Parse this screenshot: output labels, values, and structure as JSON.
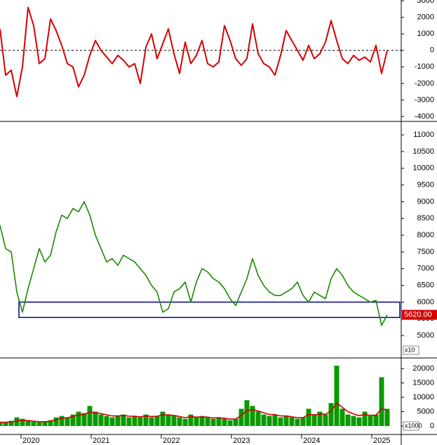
{
  "chart_data": [
    {
      "type": "line",
      "x": [
        2019.7,
        2019.78,
        2019.86,
        2019.94,
        2020.02,
        2020.1,
        2020.18,
        2020.26,
        2020.34,
        2020.42,
        2020.5,
        2020.58,
        2020.66,
        2020.74,
        2020.82,
        2020.9,
        2020.98,
        2021.06,
        2021.14,
        2021.22,
        2021.3,
        2021.38,
        2021.46,
        2021.54,
        2021.62,
        2021.7,
        2021.78,
        2021.86,
        2021.94,
        2022.02,
        2022.1,
        2022.18,
        2022.26,
        2022.34,
        2022.42,
        2022.5,
        2022.58,
        2022.66,
        2022.74,
        2022.82,
        2022.9,
        2022.98,
        2023.06,
        2023.14,
        2023.22,
        2023.3,
        2023.38,
        2023.46,
        2023.54,
        2023.62,
        2023.7,
        2023.78,
        2023.86,
        2023.94,
        2024.02,
        2024.1,
        2024.18,
        2024.26,
        2024.34,
        2024.42,
        2024.5,
        2024.58,
        2024.66,
        2024.74,
        2024.82,
        2024.9,
        2024.98,
        2025.06,
        2025.14,
        2025.22
      ],
      "series": [
        {
          "color": "#d40000",
          "values": [
            1300,
            -1500,
            -1200,
            -2800,
            -1000,
            2600,
            1500,
            -800,
            -500,
            1900,
            1200,
            300,
            -800,
            -1000,
            -2200,
            -1500,
            -300,
            600,
            0,
            -400,
            -800,
            -300,
            -600,
            -1000,
            -800,
            -2000,
            200,
            1000,
            -500,
            400,
            1300,
            -200,
            -1400,
            500,
            -800,
            -300,
            600,
            -800,
            -1000,
            -700,
            1500,
            600,
            -500,
            -900,
            -500,
            1600,
            -200,
            -800,
            -1000,
            -1500,
            -300,
            1200,
            600,
            0,
            -600,
            300,
            -500,
            -200,
            500,
            1800,
            600,
            -500,
            -800,
            -300,
            -600,
            -400,
            -700,
            300,
            -1400,
            0
          ]
        }
      ],
      "xlim": [
        2019.7,
        2025.42
      ],
      "ylim": [
        -4300,
        3050
      ],
      "yticks": [
        3000,
        2000,
        1000,
        0,
        -1000,
        -2000,
        -3000,
        -4000
      ]
    },
    {
      "type": "line",
      "x": [
        2019.7,
        2019.78,
        2019.86,
        2019.94,
        2020.02,
        2020.1,
        2020.18,
        2020.26,
        2020.34,
        2020.42,
        2020.5,
        2020.58,
        2020.66,
        2020.74,
        2020.82,
        2020.9,
        2020.98,
        2021.06,
        2021.14,
        2021.22,
        2021.3,
        2021.38,
        2021.46,
        2021.54,
        2021.62,
        2021.7,
        2021.78,
        2021.86,
        2021.94,
        2022.02,
        2022.1,
        2022.18,
        2022.26,
        2022.34,
        2022.42,
        2022.5,
        2022.58,
        2022.66,
        2022.74,
        2022.82,
        2022.9,
        2022.98,
        2023.06,
        2023.14,
        2023.22,
        2023.3,
        2023.38,
        2023.46,
        2023.54,
        2023.62,
        2023.7,
        2023.78,
        2023.86,
        2023.94,
        2024.02,
        2024.1,
        2024.18,
        2024.26,
        2024.34,
        2024.42,
        2024.5,
        2024.58,
        2024.66,
        2024.74,
        2024.82,
        2024.9,
        2024.98,
        2025.06,
        2025.14,
        2025.22
      ],
      "series": [
        {
          "color": "#1a8a00",
          "values": [
            8300,
            7600,
            7500,
            6300,
            5700,
            6400,
            7000,
            7600,
            7200,
            7400,
            8100,
            8600,
            8500,
            8800,
            8700,
            9000,
            8600,
            8000,
            7600,
            7200,
            7300,
            7100,
            7400,
            7300,
            7200,
            7000,
            6800,
            6500,
            6300,
            5700,
            5800,
            6300,
            6400,
            6600,
            6000,
            6600,
            7000,
            6900,
            6700,
            6600,
            6400,
            6100,
            5900,
            6300,
            6700,
            7300,
            6800,
            6500,
            6300,
            6200,
            6200,
            6300,
            6400,
            6600,
            6200,
            6000,
            6300,
            6200,
            6100,
            6700,
            7000,
            6800,
            6500,
            6300,
            6200,
            6100,
            6000,
            6050,
            5300,
            5620
          ]
        }
      ],
      "last_label": "5620.00",
      "unit_label": "x10",
      "zone": [
        5540,
        6000
      ],
      "zone_color": "#0000a0",
      "xlim": [
        2019.7,
        2025.42
      ],
      "ylim": [
        4330,
        11380
      ],
      "yticks": [
        11000,
        10500,
        10000,
        9500,
        9000,
        8500,
        8000,
        7500,
        7000,
        6500,
        6000,
        5500,
        5000
      ]
    },
    {
      "type": "bar",
      "x": [
        2019.7,
        2019.78,
        2019.86,
        2019.94,
        2020.02,
        2020.1,
        2020.18,
        2020.26,
        2020.34,
        2020.42,
        2020.5,
        2020.58,
        2020.66,
        2020.74,
        2020.82,
        2020.9,
        2020.98,
        2021.06,
        2021.14,
        2021.22,
        2021.3,
        2021.38,
        2021.46,
        2021.54,
        2021.62,
        2021.7,
        2021.78,
        2021.86,
        2021.94,
        2022.02,
        2022.1,
        2022.18,
        2022.26,
        2022.34,
        2022.42,
        2022.5,
        2022.58,
        2022.66,
        2022.74,
        2022.82,
        2022.9,
        2022.98,
        2023.06,
        2023.14,
        2023.22,
        2023.3,
        2023.38,
        2023.46,
        2023.54,
        2023.62,
        2023.7,
        2023.78,
        2023.86,
        2023.94,
        2024.02,
        2024.1,
        2024.18,
        2024.26,
        2024.34,
        2024.42,
        2024.5,
        2024.58,
        2024.66,
        2024.74,
        2024.82,
        2024.9,
        2024.98,
        2025.06,
        2025.14,
        2025.22
      ],
      "series": [
        {
          "kind": "bar",
          "color": "#0a9a00",
          "values": [
            1500,
            1200,
            1800,
            3000,
            2500,
            2000,
            1500,
            1300,
            1500,
            2000,
            3000,
            3500,
            3000,
            4000,
            5000,
            4500,
            7000,
            5000,
            4000,
            3500,
            3000,
            3500,
            4000,
            3000,
            3500,
            3000,
            4000,
            3000,
            3500,
            5000,
            4000,
            3500,
            3000,
            2500,
            4000,
            3000,
            3500,
            3000,
            2500,
            3000,
            2500,
            2000,
            2500,
            6000,
            9000,
            7000,
            5000,
            4000,
            3500,
            4000,
            3000,
            3500,
            3000,
            2500,
            3000,
            6000,
            4000,
            5000,
            4000,
            8000,
            21000,
            6000,
            4000,
            3500,
            3000,
            5000,
            3500,
            4000,
            17000,
            6000
          ]
        },
        {
          "kind": "line",
          "color": "#cc0000",
          "values": [
            1200,
            1300,
            1400,
            1800,
            2000,
            1900,
            1700,
            1500,
            1500,
            1700,
            2200,
            2700,
            2900,
            3300,
            3800,
            4100,
            4800,
            4700,
            4300,
            3900,
            3500,
            3500,
            3700,
            3400,
            3400,
            3200,
            3500,
            3300,
            3400,
            3900,
            3900,
            3700,
            3300,
            2900,
            3300,
            3100,
            3200,
            3100,
            2800,
            2900,
            2700,
            2400,
            2400,
            3700,
            5300,
            5700,
            5200,
            4600,
            4000,
            4000,
            3500,
            3500,
            3200,
            2900,
            2900,
            4000,
            3900,
            4200,
            4100,
            5200,
            8000,
            6500,
            5000,
            4200,
            3600,
            4000,
            3700,
            3800,
            6000,
            5500
          ]
        }
      ],
      "unit_label": "x1000",
      "xlim": [
        2019.7,
        2025.42
      ],
      "xticks": [
        2020,
        2021,
        2022,
        2023,
        2024,
        2025
      ],
      "ylim": [
        -2700,
        23200
      ],
      "yticks": [
        20000,
        15000,
        10000,
        5000,
        0
      ]
    }
  ]
}
